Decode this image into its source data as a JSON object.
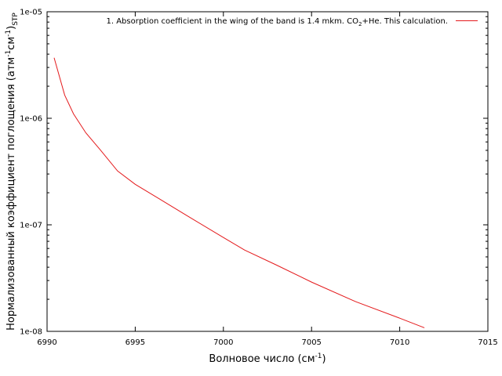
{
  "chart_data": {
    "type": "line",
    "title": "",
    "xlabel": {
      "text": "Волновое число (см",
      "sup": "-1",
      "tail": ")"
    },
    "ylabel": {
      "text": "Нормализованный коэффициент поглощения (атм",
      "sup1": "-1",
      "mid": "см",
      "sup2": "-1",
      "close": ")",
      "sub": "STP"
    },
    "xlim": [
      6990,
      7015
    ],
    "ylim": [
      1e-08,
      1e-05
    ],
    "yscale": "log",
    "grid": false,
    "legend_position": "top-right",
    "x_ticks": [
      6990,
      6995,
      7000,
      7005,
      7010,
      7015
    ],
    "x_tick_labels": [
      "6990",
      "6995",
      "7000",
      "7005",
      "7010",
      "7015"
    ],
    "y_ticks": [
      1e-08,
      1e-07,
      1e-06,
      1e-05
    ],
    "y_tick_labels": [
      "1e-08",
      "1e-07",
      "1e-06",
      "1e-05"
    ],
    "series": [
      {
        "name": {
          "pre": "1. Absorption coefficient in the wing of the band is 1.4 mkm. CO",
          "sub": "2",
          "post": "+He. This calculation."
        },
        "color": "#e41a1c",
        "x": [
          6990.4,
          6991.0,
          6991.5,
          6992.2,
          6993.0,
          6994.0,
          6995.0,
          6996.5,
          6998.0,
          7000.0,
          7001.2,
          7003.0,
          7005.0,
          7007.5,
          7010.0,
          7011.4
        ],
        "y": [
          3.7e-06,
          1.65e-06,
          1.1e-06,
          7.3e-07,
          5.1e-07,
          3.2e-07,
          2.4e-07,
          1.7e-07,
          1.2e-07,
          7.6e-08,
          5.8e-08,
          4.2e-08,
          2.9e-08,
          1.9e-08,
          1.33e-08,
          1.08e-08
        ]
      }
    ]
  }
}
